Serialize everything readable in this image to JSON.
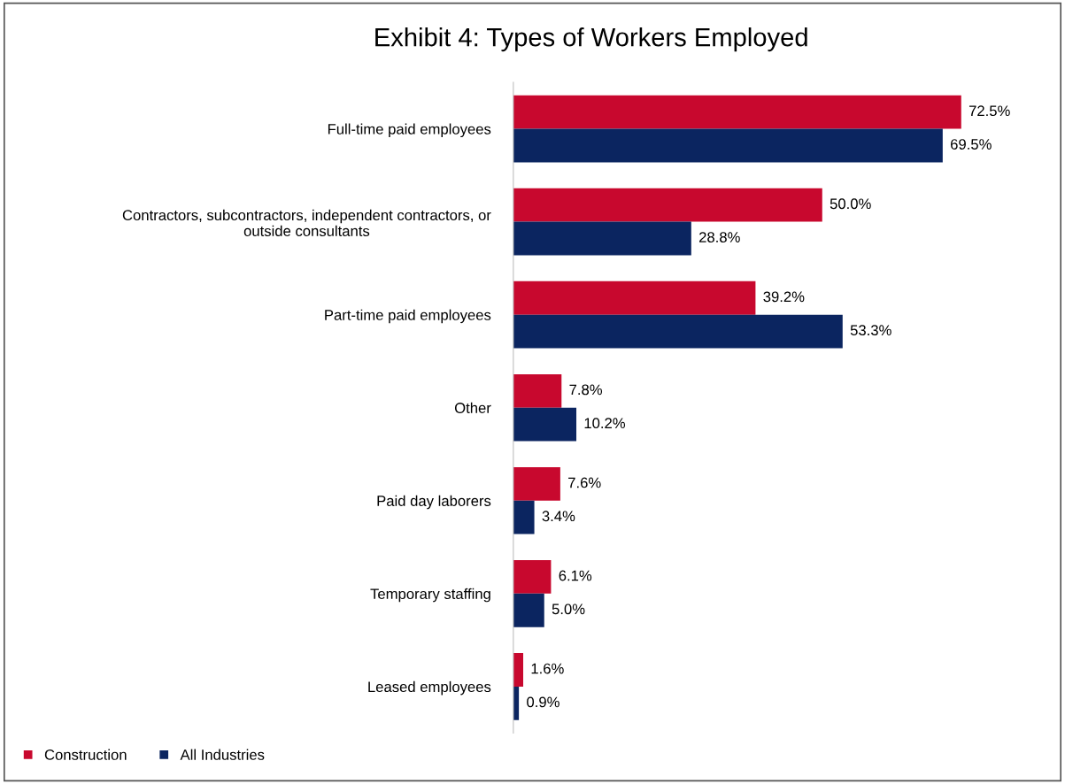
{
  "chart_data": {
    "type": "bar",
    "orientation": "horizontal",
    "title": "Exhibit 4: Types of Workers Employed",
    "categories": [
      "Full-time paid employees",
      "Contractors, subcontractors, independent contractors, or\noutside consultants",
      "Part-time paid employees",
      "Other",
      "Paid day laborers",
      "Temporary staffing",
      "Leased employees"
    ],
    "series": [
      {
        "name": "Construction",
        "color": "#c8082e",
        "values": [
          72.5,
          50.0,
          39.2,
          7.8,
          7.6,
          6.1,
          1.6
        ],
        "value_labels": [
          "72.5%",
          "50.0%",
          "39.2%",
          "7.8%",
          "7.6%",
          "6.1%",
          "1.6%"
        ]
      },
      {
        "name": "All Industries",
        "color": "#0b2560",
        "values": [
          69.5,
          28.8,
          53.3,
          10.2,
          3.4,
          5.0,
          0.9
        ],
        "value_labels": [
          "69.5%",
          "28.8%",
          "53.3%",
          "10.2%",
          "3.4%",
          "5.0%",
          "0.9%"
        ]
      }
    ],
    "legend": "bottom left",
    "grid": false,
    "tick_labels": "y"
  }
}
